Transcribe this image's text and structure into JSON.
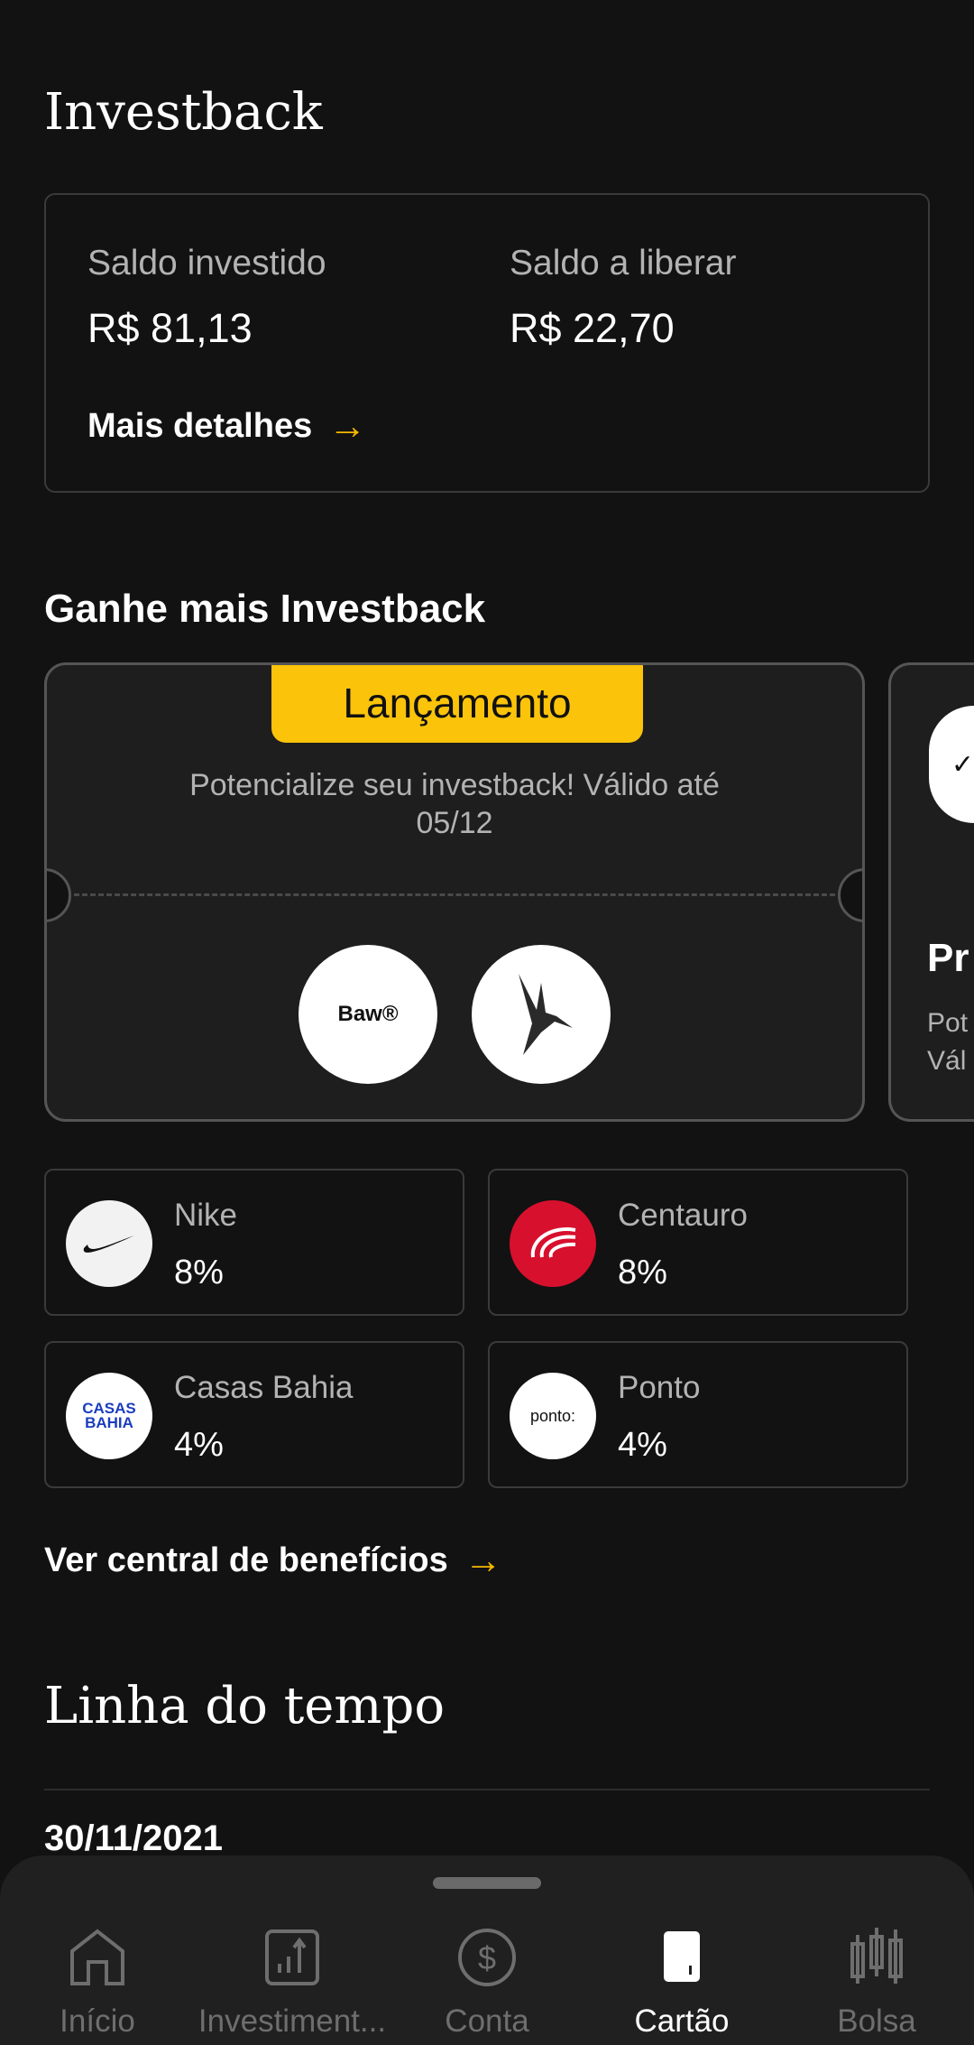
{
  "title": "Investback",
  "summary": {
    "invested_label": "Saldo investido",
    "invested_value": "R$ 81,13",
    "release_label": "Saldo a liberar",
    "release_value": "R$ 22,70",
    "details_link": "Mais detalhes"
  },
  "earn": {
    "heading": "Ganhe mais Investback",
    "coupon": {
      "badge": "Lançamento",
      "description": "Potencialize seu investback! Válido até 05/12",
      "logos": [
        "Baw®",
        "hummingbird-logo"
      ]
    },
    "next_coupon": {
      "title_partial": "Pr",
      "desc_partial_1": "Pot",
      "desc_partial_2": "Vál"
    },
    "stores": [
      {
        "name": "Nike",
        "percent": "8%"
      },
      {
        "name": "Centauro",
        "percent": "8%"
      },
      {
        "name": "Casas Bahia",
        "percent": "4%",
        "logo_text": "CASAS BAHIA"
      },
      {
        "name": "Ponto",
        "percent": "4%",
        "logo_text": "ponto:"
      }
    ],
    "benefits_link": "Ver central de benefícios"
  },
  "timeline": {
    "heading": "Linha do tempo",
    "date": "30/11/2021"
  },
  "nav": {
    "items": [
      {
        "label": "Início",
        "icon": "home-icon"
      },
      {
        "label": "Investiment...",
        "icon": "chart-icon"
      },
      {
        "label": "Conta",
        "icon": "dollar-icon"
      },
      {
        "label": "Cartão",
        "icon": "card-icon",
        "active": true
      },
      {
        "label": "Bolsa",
        "icon": "candlestick-icon"
      }
    ]
  },
  "colors": {
    "accent": "#fbc30a",
    "background": "#121212",
    "surface": "#1e1e1e"
  }
}
